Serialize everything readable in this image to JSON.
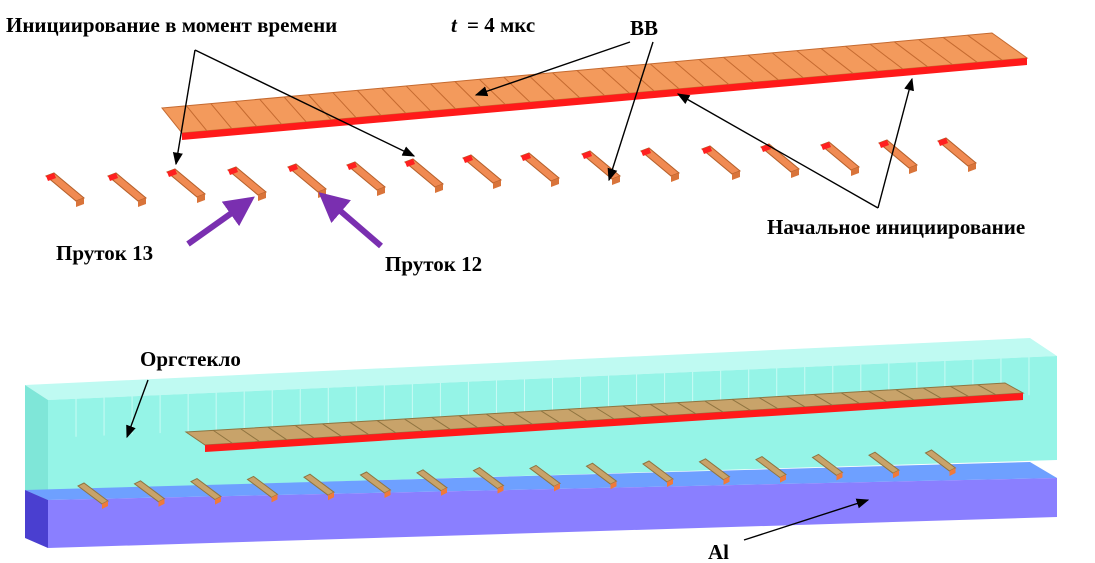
{
  "top": {
    "label_initiation_time": "Инициирование в момент времени",
    "label_t": "t",
    "label_time_value": "= 4 мкс",
    "label_explosive": "ВВ",
    "label_initial_initiation": "Начальное инициирование",
    "label_rod_13": "Пруток 13",
    "label_rod_12": "Пруток 12"
  },
  "bottom": {
    "label_plexiglass": "Оргстекло",
    "label_al": "Al"
  },
  "colors": {
    "charge_top": "#f39a5c",
    "charge_red": "#ff1a1a",
    "rod_body": "#f08a52",
    "rod_tip": "#ff2020",
    "arrow_purple": "#7a2fb0",
    "plexiglass": "#8ff3e6",
    "aluminum": "#8a7fff",
    "rod_tan": "#c8a36a"
  }
}
